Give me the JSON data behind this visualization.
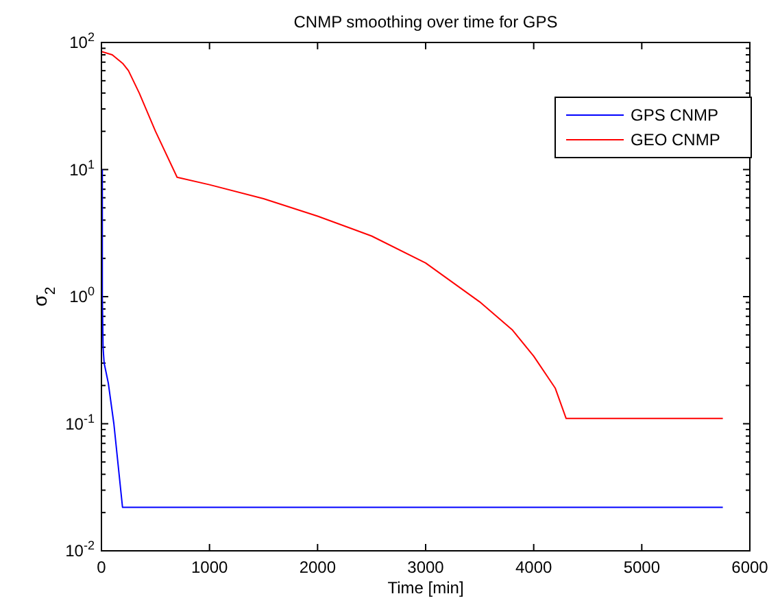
{
  "chart_data": {
    "type": "line",
    "title": "CNMP smoothing over time for GPS",
    "xlabel": "Time [min]",
    "ylabel": "σ$_{2}$",
    "log": "y",
    "grid": false,
    "legend": "top right",
    "line_style": "solid",
    "marker": "none",
    "xlim": [
      0,
      6000
    ],
    "xticks": [
      0,
      1000,
      2000,
      3000,
      4000,
      5000,
      6000
    ],
    "ylim": [
      0.01,
      100
    ],
    "yticks": [
      {
        "value": 0.01,
        "label": "10$^{-2}$"
      },
      {
        "value": 0.1,
        "label": "10$^{-1}$"
      },
      {
        "value": 1,
        "label": "10$^{0}$"
      },
      {
        "value": 10,
        "label": "10$^{1}$"
      },
      {
        "value": 100,
        "label": "10$^{2}$"
      }
    ],
    "series": [
      {
        "name": "GPS CNMP",
        "color": "#0000ff",
        "x": [
          8,
          8,
          15,
          25,
          63,
          115,
          195,
          5750
        ],
        "values": [
          10,
          1,
          0.4,
          0.3,
          0.21,
          0.1,
          0.022,
          0.022
        ]
      },
      {
        "name": "GEO CNMP",
        "color": "#ff0000",
        "x": [
          0,
          100,
          200,
          250,
          350,
          500,
          700,
          1000,
          1500,
          2000,
          2500,
          3000,
          3500,
          3800,
          4000,
          4200,
          4300,
          5750
        ],
        "values": [
          85,
          80,
          68,
          60,
          40,
          20,
          8.7,
          7.6,
          5.9,
          4.3,
          3.0,
          1.84,
          0.91,
          0.55,
          0.34,
          0.19,
          0.11,
          0.11
        ]
      }
    ]
  }
}
